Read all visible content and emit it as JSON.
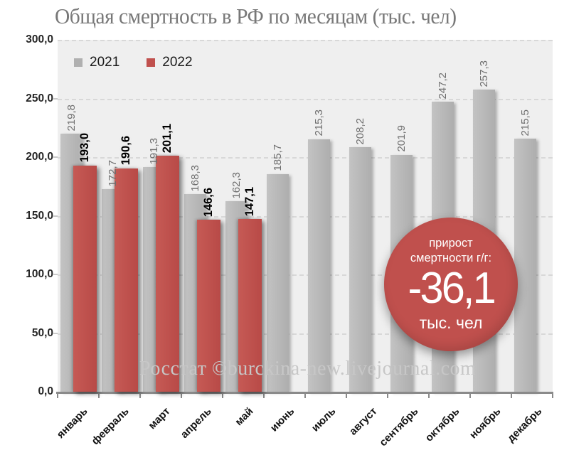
{
  "title": "Общая смертность в РФ по месяцам (тыс. чел)",
  "legend": {
    "items": [
      {
        "label": "2021",
        "color": "#b0b0b0"
      },
      {
        "label": "2022",
        "color": "#c0504d"
      }
    ]
  },
  "watermark": "Росстат ©burckina-new.livejournal.com",
  "badge": {
    "caption_line1": "прирост",
    "caption_line2": "смертности г/г:",
    "value": "-36,1",
    "unit": "тыс. чел",
    "color": "#c0504d"
  },
  "colors": {
    "bar_2021": "#b6b6b6",
    "bar_2022": "#c0504d",
    "plot_background": "#efefef",
    "gridline": "#d8d8d8",
    "axis": "#8a8a8a",
    "title_text": "#787878",
    "label_2021_text": "#6e6e6e",
    "label_2022_text": "#000000"
  },
  "chart_data": {
    "type": "bar",
    "title": "Общая смертность в РФ по месяцам (тыс. чел)",
    "categories": [
      "январь",
      "февраль",
      "март",
      "апрель",
      "май",
      "июнь",
      "июль",
      "август",
      "сентябрь",
      "октябрь",
      "ноябрь",
      "декабрь"
    ],
    "series": [
      {
        "name": "2021",
        "color": "#b6b6b6",
        "values": [
          219.8,
          172.7,
          191.3,
          168.3,
          162.3,
          185.7,
          215.3,
          208.2,
          201.9,
          247.2,
          257.3,
          215.5
        ],
        "labels": [
          "219,8",
          "172,7",
          "191,3",
          "168,3",
          "162,3",
          "185,7",
          "215,3",
          "208,2",
          "201,9",
          "247,2",
          "257,3",
          "215,5"
        ]
      },
      {
        "name": "2022",
        "color": "#c0504d",
        "values": [
          193.0,
          190.6,
          201.1,
          146.6,
          147.1,
          null,
          null,
          null,
          null,
          null,
          null,
          null
        ],
        "labels": [
          "193,0",
          "190,6",
          "201,1",
          "146,6",
          "147,1",
          null,
          null,
          null,
          null,
          null,
          null,
          null
        ]
      }
    ],
    "ylim": [
      0,
      300
    ],
    "ytick_labels": [
      "300,0",
      "250,0",
      "200,0",
      "150,0",
      "100,0",
      "50,0",
      "0,0"
    ],
    "ytick_values": [
      300,
      250,
      200,
      150,
      100,
      50,
      0
    ],
    "grid": "horizontal-dashed",
    "legend_position": "top-left-inside",
    "annotation": "прирост смертности г/г: -36,1 тыс. чел"
  }
}
